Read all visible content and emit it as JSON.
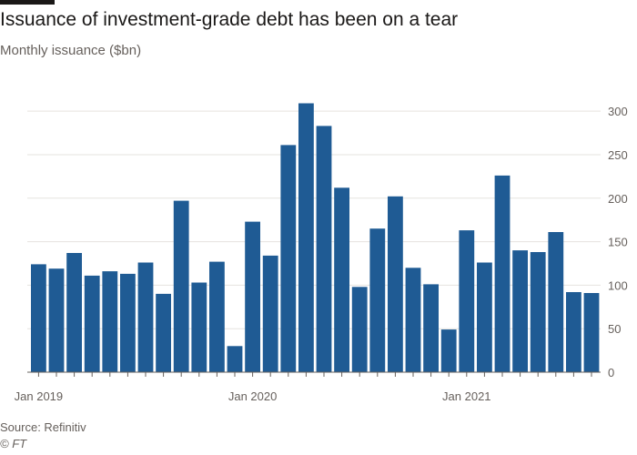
{
  "header": {
    "title": "Issuance of investment-grade debt has been on a tear",
    "subtitle": "Monthly issuance ($bn)"
  },
  "footer": {
    "source": "Source: Refinitiv",
    "credit": "© FT"
  },
  "colors": {
    "bar": "#1f5b94",
    "grid": "#e6e3df",
    "axis": "#66605c"
  },
  "chart_data": {
    "type": "bar",
    "title": "Issuance of investment-grade debt has been on a tear",
    "subtitle": "Monthly issuance ($bn)",
    "xlabel": "",
    "ylabel": "Monthly issuance ($bn)",
    "ylim": [
      0,
      320
    ],
    "yticks": [
      0,
      50,
      100,
      150,
      200,
      250,
      300
    ],
    "y_axis_side": "right",
    "grid": true,
    "categories": [
      "Jan 2019",
      "Feb 2019",
      "Mar 2019",
      "Apr 2019",
      "May 2019",
      "Jun 2019",
      "Jul 2019",
      "Aug 2019",
      "Sep 2019",
      "Oct 2019",
      "Nov 2019",
      "Dec 2019",
      "Jan 2020",
      "Feb 2020",
      "Mar 2020",
      "Apr 2020",
      "May 2020",
      "Jun 2020",
      "Jul 2020",
      "Aug 2020",
      "Sep 2020",
      "Oct 2020",
      "Nov 2020",
      "Dec 2020",
      "Jan 2021",
      "Feb 2021",
      "Mar 2021",
      "Apr 2021",
      "May 2021",
      "Jun 2021",
      "Jul 2021",
      "Aug 2021"
    ],
    "values": [
      124,
      119,
      137,
      111,
      116,
      113,
      126,
      90,
      197,
      103,
      127,
      30,
      173,
      134,
      261,
      309,
      283,
      212,
      98,
      165,
      202,
      120,
      101,
      49,
      163,
      126,
      226,
      140,
      138,
      161,
      92,
      91
    ],
    "x_tick_labels": [
      {
        "index": 0,
        "label": "Jan 2019"
      },
      {
        "index": 12,
        "label": "Jan 2020"
      },
      {
        "index": 24,
        "label": "Jan 2021"
      }
    ]
  }
}
